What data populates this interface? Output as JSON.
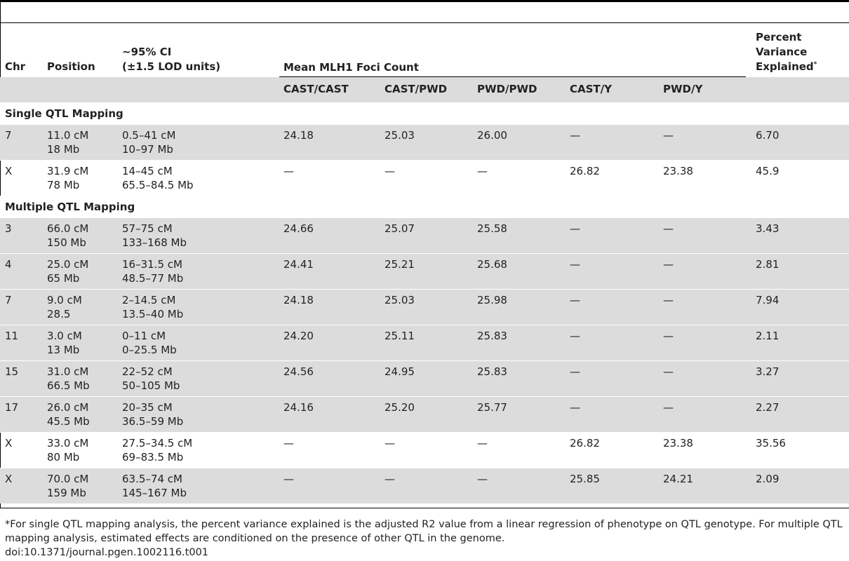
{
  "header": {
    "chr": "Chr",
    "position": "Position",
    "ci_line1": "~95% CI",
    "ci_line2": "(±1.5 LOD units)",
    "mean": "Mean MLH1 Foci Count",
    "pv_line1": "Percent",
    "pv_line2": "Variance",
    "pv_line3": "Explained",
    "pv_sup": "*",
    "genotypes": [
      "CAST/CAST",
      "CAST/PWD",
      "PWD/PWD",
      "CAST/Y",
      "PWD/Y"
    ]
  },
  "sections": [
    {
      "title": "Single QTL Mapping",
      "rows": [
        {
          "chr": "7",
          "pos1": "11.0 cM",
          "pos2": "18 Mb",
          "ci1": "0.5–41 cM",
          "ci2": "10–97 Mb",
          "v": [
            "24.18",
            "25.03",
            "26.00",
            "—",
            "—"
          ],
          "pv": "6.70"
        },
        {
          "chr": "X",
          "pos1": "31.9 cM",
          "pos2": "78 Mb",
          "ci1": "14–45 cM",
          "ci2": "65.5–84.5 Mb",
          "v": [
            "—",
            "—",
            "—",
            "26.82",
            "23.38"
          ],
          "pv": "45.9"
        }
      ]
    },
    {
      "title": "Multiple QTL Mapping",
      "rows": [
        {
          "chr": "3",
          "pos1": "66.0 cM",
          "pos2": "150 Mb",
          "ci1": "57–75 cM",
          "ci2": "133–168 Mb",
          "v": [
            "24.66",
            "25.07",
            "25.58",
            "—",
            "—"
          ],
          "pv": "3.43"
        },
        {
          "chr": "4",
          "pos1": "25.0 cM",
          "pos2": "65 Mb",
          "ci1": "16–31.5 cM",
          "ci2": "48.5–77 Mb",
          "v": [
            "24.41",
            "25.21",
            "25.68",
            "—",
            "—"
          ],
          "pv": "2.81"
        },
        {
          "chr": "7",
          "pos1": "9.0 cM",
          "pos2": "28.5",
          "ci1": "2–14.5 cM",
          "ci2": "13.5–40 Mb",
          "v": [
            "24.18",
            "25.03",
            "25.98",
            "—",
            "—"
          ],
          "pv": "7.94"
        },
        {
          "chr": "11",
          "pos1": "3.0 cM",
          "pos2": "13 Mb",
          "ci1": "0–11 cM",
          "ci2": "0–25.5 Mb",
          "v": [
            "24.20",
            "25.11",
            "25.83",
            "—",
            "—"
          ],
          "pv": "2.11"
        },
        {
          "chr": "15",
          "pos1": "31.0 cM",
          "pos2": "66.5 Mb",
          "ci1": "22–52 cM",
          "ci2": "50–105 Mb",
          "v": [
            "24.56",
            "24.95",
            "25.83",
            "—",
            "—"
          ],
          "pv": "3.27"
        },
        {
          "chr": "17",
          "pos1": "26.0 cM",
          "pos2": "45.5 Mb",
          "ci1": "20–35 cM",
          "ci2": "36.5–59 Mb",
          "v": [
            "24.16",
            "25.20",
            "25.77",
            "—",
            "—"
          ],
          "pv": "2.27"
        },
        {
          "chr": "X",
          "pos1": "33.0 cM",
          "pos2": "80 Mb",
          "ci1": "27.5–34.5 cM",
          "ci2": "69–83.5 Mb",
          "v": [
            "—",
            "—",
            "—",
            "26.82",
            "23.38"
          ],
          "pv": "35.56"
        },
        {
          "chr": "X",
          "pos1": "70.0 cM",
          "pos2": "159 Mb",
          "ci1": "63.5–74 cM",
          "ci2": "145–167 Mb",
          "v": [
            "—",
            "—",
            "—",
            "25.85",
            "24.21"
          ],
          "pv": "2.09"
        }
      ]
    }
  ],
  "footnote": "*For single QTL mapping analysis, the percent variance explained is the adjusted R2 value from a linear regression of phenotype on QTL genotype. For multiple QTL mapping analysis, estimated effects are conditioned on the presence of other QTL in the genome.",
  "doi": "doi:10.1371/journal.pgen.1002116.t001"
}
